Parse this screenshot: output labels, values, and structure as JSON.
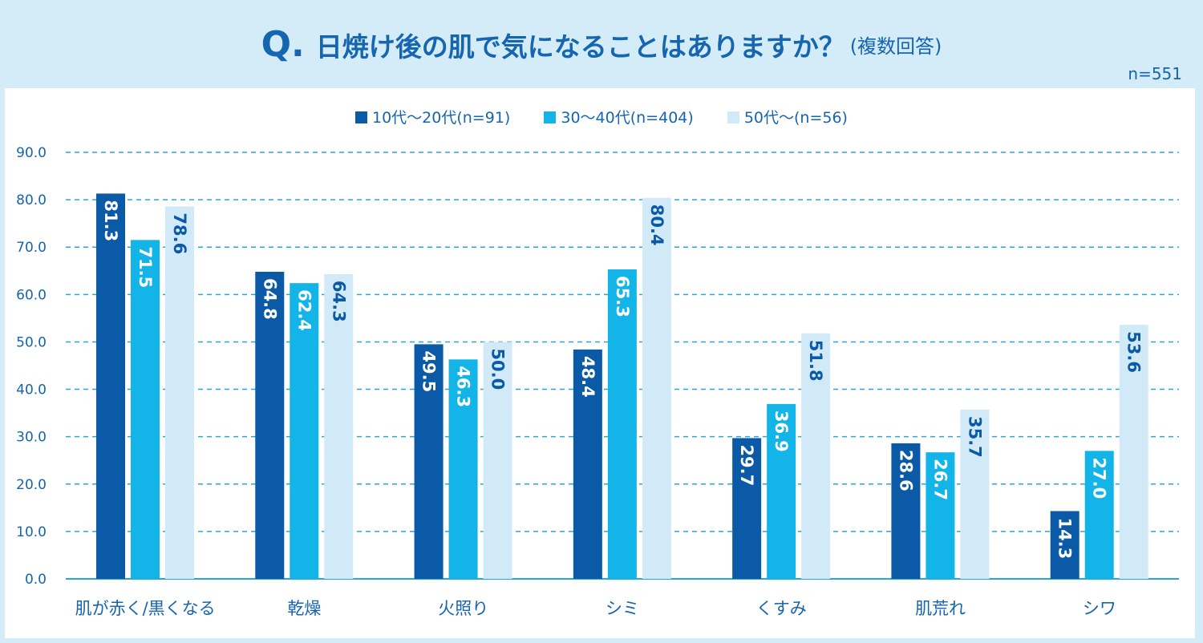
{
  "title": {
    "prefix": "Q.",
    "question": "日焼け後の肌で気になることはありますか？",
    "note": "(複数回答)"
  },
  "sample_size": "n=551",
  "colors": {
    "series1": "#0a5aa8",
    "series2": "#13b4e8",
    "series3": "#d2e9f8",
    "accent": "#1565b0",
    "grid": "#2aa6d6",
    "background": "#d4ebf8"
  },
  "chart_data": {
    "type": "bar",
    "title": "日焼け後の肌で気になることはありますか？",
    "xlabel": "",
    "ylabel": "",
    "ylim": [
      0,
      90
    ],
    "yticks": [
      "0.0",
      "10.0",
      "20.0",
      "30.0",
      "40.0",
      "50.0",
      "60.0",
      "70.0",
      "80.0",
      "90.0"
    ],
    "grid": true,
    "legend_position": "top-center",
    "categories": [
      "肌が赤く/黒くなる",
      "乾燥",
      "火照り",
      "シミ",
      "くすみ",
      "肌荒れ",
      "シワ"
    ],
    "series": [
      {
        "name": "10代～20代(n=91)",
        "values": [
          81.3,
          64.8,
          49.5,
          48.4,
          29.7,
          28.6,
          14.3
        ]
      },
      {
        "name": "30～40代(n=404)",
        "values": [
          71.5,
          62.4,
          46.3,
          65.3,
          36.9,
          26.7,
          27.0
        ]
      },
      {
        "name": "50代～(n=56)",
        "values": [
          78.6,
          64.3,
          50.0,
          80.4,
          51.8,
          35.7,
          53.6
        ]
      }
    ]
  }
}
